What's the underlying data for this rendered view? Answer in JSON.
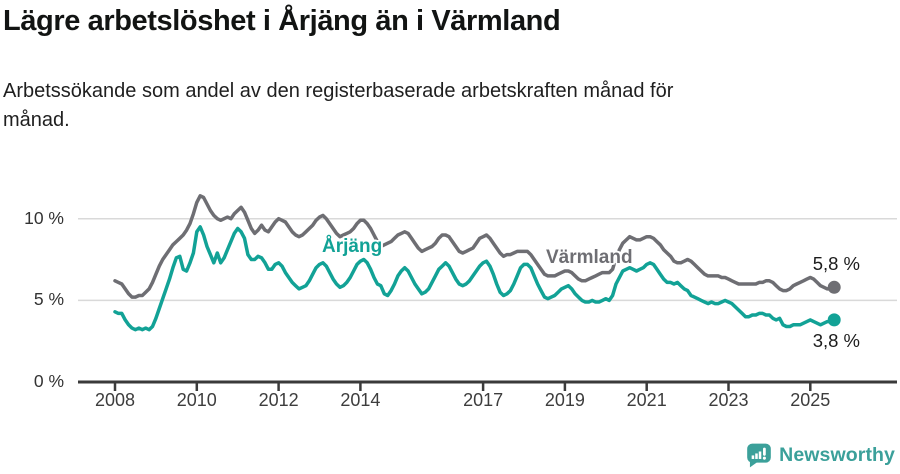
{
  "header": {
    "title": "Lägre arbetslöshet i Årjäng än i Värmland",
    "subtitle": "Arbetssökande som andel av den registerbaserade arbetskraften månad för\nmånad."
  },
  "chart_data": {
    "type": "line",
    "title": "Lägre arbetslöshet i Årjäng än i Värmland",
    "unit": "%",
    "frequency": "monthly",
    "x_start": "2008-01",
    "x_end": "2025-08",
    "grid": "horizontal",
    "legend_position": "inline-labels",
    "ylim": [
      0,
      11.8
    ],
    "y_ticks": [
      0,
      5,
      10
    ],
    "y_tick_labels": [
      "0 %",
      "5 %",
      "10 %"
    ],
    "x_ticks": [
      2008,
      2010,
      2012,
      2014,
      2017,
      2019,
      2021,
      2023,
      2025
    ],
    "series": [
      {
        "name": "Årjäng",
        "color": "#12a296",
        "end_label": "3,8 %",
        "latest_value": 3.8,
        "values": [
          4.3,
          4.2,
          4.2,
          3.8,
          3.5,
          3.3,
          3.2,
          3.3,
          3.2,
          3.3,
          3.2,
          3.4,
          3.9,
          4.5,
          5.1,
          5.7,
          6.3,
          7.0,
          7.6,
          7.7,
          6.9,
          6.8,
          7.3,
          7.9,
          9.2,
          9.5,
          9.0,
          8.3,
          7.8,
          7.3,
          7.9,
          7.3,
          7.6,
          8.1,
          8.6,
          9.1,
          9.4,
          9.2,
          8.8,
          7.8,
          7.5,
          7.5,
          7.7,
          7.6,
          7.3,
          6.9,
          6.9,
          7.2,
          7.3,
          7.1,
          6.7,
          6.4,
          6.1,
          5.9,
          5.7,
          5.8,
          5.9,
          6.2,
          6.6,
          7.0,
          7.2,
          7.3,
          7.1,
          6.7,
          6.3,
          6.0,
          5.8,
          5.9,
          6.1,
          6.4,
          6.8,
          7.2,
          7.4,
          7.5,
          7.3,
          6.9,
          6.4,
          6.0,
          5.9,
          5.4,
          5.3,
          5.6,
          6.0,
          6.5,
          6.8,
          7.0,
          6.8,
          6.4,
          6.0,
          5.7,
          5.4,
          5.5,
          5.7,
          6.1,
          6.5,
          6.9,
          7.1,
          7.3,
          7.1,
          6.7,
          6.3,
          6.0,
          5.9,
          6.0,
          6.2,
          6.5,
          6.8,
          7.1,
          7.3,
          7.4,
          7.1,
          6.6,
          6.0,
          5.5,
          5.3,
          5.4,
          5.6,
          6.0,
          6.5,
          7.0,
          7.2,
          7.2,
          7.0,
          6.5,
          6.0,
          5.6,
          5.2,
          5.1,
          5.2,
          5.3,
          5.5,
          5.7,
          5.8,
          5.9,
          5.7,
          5.4,
          5.2,
          5.0,
          4.9,
          4.9,
          5.0,
          4.9,
          4.9,
          5.0,
          5.1,
          5.0,
          5.3,
          6.0,
          6.4,
          6.8,
          6.9,
          7.0,
          6.9,
          6.8,
          6.9,
          7.0,
          7.2,
          7.3,
          7.2,
          6.9,
          6.6,
          6.3,
          6.1,
          6.1,
          6.0,
          6.1,
          5.9,
          5.7,
          5.6,
          5.3,
          5.2,
          5.1,
          5.0,
          4.9,
          4.8,
          4.9,
          4.8,
          4.8,
          4.9,
          5.0,
          4.9,
          4.8,
          4.6,
          4.4,
          4.2,
          4.0,
          4.0,
          4.1,
          4.1,
          4.2,
          4.2,
          4.1,
          4.1,
          3.9,
          3.8,
          3.9,
          3.5,
          3.4,
          3.4,
          3.5,
          3.5,
          3.5,
          3.6,
          3.7,
          3.8,
          3.7,
          3.6,
          3.5,
          3.6,
          3.7,
          3.7,
          3.8
        ]
      },
      {
        "name": "Värmland",
        "color": "#6e6e73",
        "end_label": "5,8 %",
        "latest_value": 5.8,
        "values": [
          6.2,
          6.1,
          6.0,
          5.7,
          5.4,
          5.2,
          5.2,
          5.3,
          5.3,
          5.5,
          5.7,
          6.1,
          6.6,
          7.1,
          7.5,
          7.8,
          8.1,
          8.4,
          8.6,
          8.8,
          9.0,
          9.3,
          9.7,
          10.3,
          11.0,
          11.4,
          11.3,
          10.9,
          10.5,
          10.2,
          10.0,
          9.9,
          10.0,
          10.1,
          10.0,
          10.3,
          10.5,
          10.7,
          10.4,
          9.9,
          9.4,
          9.1,
          9.3,
          9.6,
          9.3,
          9.2,
          9.5,
          9.8,
          10.0,
          9.9,
          9.8,
          9.5,
          9.2,
          9.0,
          8.9,
          9.0,
          9.2,
          9.4,
          9.6,
          9.9,
          10.1,
          10.2,
          10.0,
          9.7,
          9.4,
          9.1,
          8.9,
          9.0,
          9.1,
          9.2,
          9.4,
          9.7,
          9.9,
          9.9,
          9.7,
          9.4,
          9.0,
          8.6,
          8.3,
          8.4,
          8.5,
          8.6,
          8.8,
          9.0,
          9.1,
          9.2,
          9.1,
          8.8,
          8.5,
          8.2,
          8.0,
          8.1,
          8.2,
          8.3,
          8.5,
          8.8,
          9.0,
          9.0,
          8.9,
          8.6,
          8.3,
          8.0,
          7.9,
          8.0,
          8.1,
          8.2,
          8.5,
          8.8,
          8.9,
          9.0,
          8.8,
          8.5,
          8.2,
          7.9,
          7.7,
          7.8,
          7.8,
          7.9,
          8.0,
          8.0,
          8.0,
          8.0,
          7.8,
          7.5,
          7.2,
          6.9,
          6.6,
          6.5,
          6.5,
          6.5,
          6.6,
          6.7,
          6.8,
          6.8,
          6.7,
          6.5,
          6.3,
          6.2,
          6.2,
          6.3,
          6.4,
          6.5,
          6.6,
          6.7,
          6.7,
          6.7,
          6.9,
          7.6,
          8.1,
          8.5,
          8.7,
          8.9,
          8.8,
          8.7,
          8.7,
          8.8,
          8.9,
          8.9,
          8.8,
          8.6,
          8.4,
          8.1,
          7.9,
          7.7,
          7.4,
          7.3,
          7.3,
          7.4,
          7.5,
          7.4,
          7.2,
          7.0,
          6.8,
          6.6,
          6.5,
          6.5,
          6.5,
          6.5,
          6.4,
          6.4,
          6.3,
          6.2,
          6.1,
          6.0,
          6.0,
          6.0,
          6.0,
          6.0,
          6.0,
          6.1,
          6.1,
          6.2,
          6.2,
          6.1,
          5.9,
          5.7,
          5.6,
          5.6,
          5.7,
          5.9,
          6.0,
          6.1,
          6.2,
          6.3,
          6.4,
          6.3,
          6.1,
          5.9,
          5.8,
          5.7,
          5.7,
          5.8
        ]
      }
    ]
  },
  "footer": {
    "brand": "Newsworthy",
    "brand_color": "#3ba09a"
  }
}
